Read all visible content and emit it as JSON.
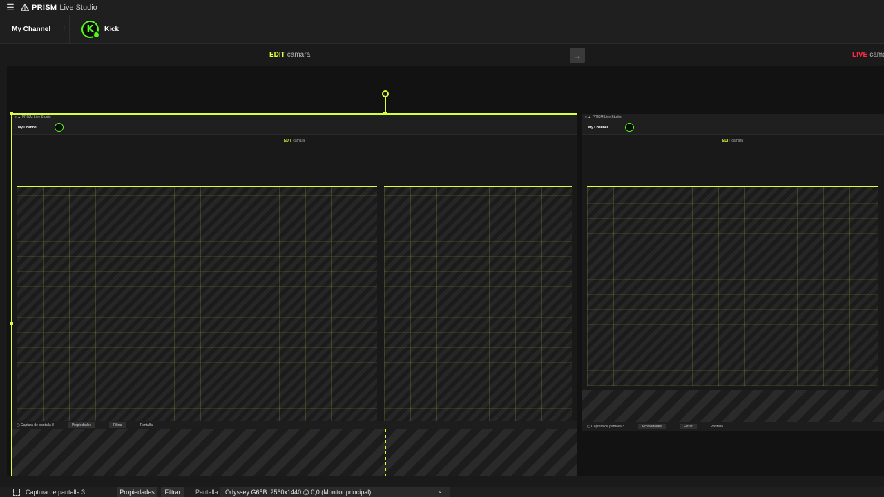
{
  "app": {
    "brand": "PRISM",
    "title": "Live Studio"
  },
  "channel": {
    "name": "My Channel",
    "platform": "Kick"
  },
  "scene": {
    "edit_tag": "EDIT",
    "edit_name": "camara",
    "live_tag": "LIVE",
    "live_name": "camara"
  },
  "bottom": {
    "source_name": "Captura de pantalla 3",
    "properties_label": "Propiedades",
    "filter_label": "Filtrar",
    "monitor_label": "Pantalla",
    "monitor_value": "Odyssey G65B: 2560x1440 @ 0,0 (Monitor principal)"
  },
  "colors": {
    "accent": "#d9ff3a",
    "edit": "#e4ff3c",
    "live": "#ff2b43",
    "kick": "#53fc18"
  },
  "icons": [
    "menu-icon",
    "prism-logo-icon",
    "more-icon",
    "kick-icon",
    "arrow-right-icon",
    "capture-icon",
    "chevron-down-icon"
  ]
}
